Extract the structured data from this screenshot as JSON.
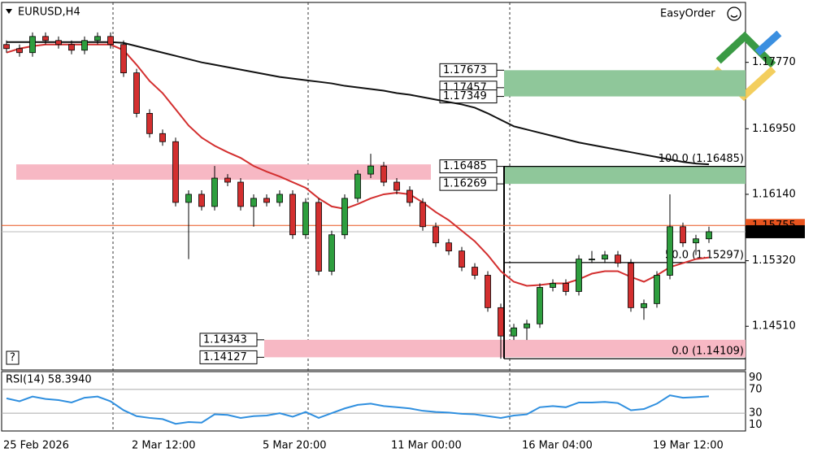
{
  "chart_data": {
    "type": "candlestick",
    "title": "EURUSD,H4",
    "easy_order": "EasyOrder",
    "help": "?",
    "bull_color": "#2e9e3e",
    "bear_color": "#d32f2f",
    "open": [
      1.1799,
      1.1794,
      1.1789,
      1.1809,
      1.1804,
      1.1799,
      1.1792,
      1.1804,
      1.1809,
      1.1799,
      1.1764,
      1.1714,
      1.1689,
      1.1679,
      1.1604,
      1.1614,
      1.1599,
      1.1634,
      1.1629,
      1.1599,
      1.1609,
      1.1604,
      1.1614,
      1.1564,
      1.1604,
      1.1519,
      1.1564,
      1.1609,
      1.1639,
      1.1649,
      1.1629,
      1.1619,
      1.1604,
      1.1574,
      1.1554,
      1.1544,
      1.1524,
      1.1514,
      1.1474,
      1.1439,
      1.1449,
      1.1454,
      1.1499,
      1.1504,
      1.1494,
      1.1534,
      1.1534,
      1.1539,
      1.1529,
      1.1474,
      1.1479,
      1.1514,
      1.1574,
      1.1554,
      1.1559
    ],
    "high": [
      1.1804,
      1.1799,
      1.1814,
      1.1814,
      1.1809,
      1.1804,
      1.1809,
      1.1814,
      1.1814,
      1.1804,
      1.1769,
      1.1719,
      1.1694,
      1.1684,
      1.1619,
      1.1619,
      1.1649,
      1.1639,
      1.1634,
      1.1614,
      1.1614,
      1.1619,
      1.1619,
      1.1609,
      1.1609,
      1.1569,
      1.1614,
      1.1644,
      1.1664,
      1.1654,
      1.1634,
      1.1624,
      1.1609,
      1.1579,
      1.1559,
      1.1549,
      1.1529,
      1.1519,
      1.1479,
      1.1454,
      1.1459,
      1.1504,
      1.1509,
      1.1509,
      1.1539,
      1.1544,
      1.1544,
      1.1544,
      1.1534,
      1.1484,
      1.1519,
      1.1614,
      1.1579,
      1.1564,
      1.1574
    ],
    "low": [
      1.1789,
      1.1784,
      1.1784,
      1.1799,
      1.1794,
      1.1787,
      1.1787,
      1.1799,
      1.1794,
      1.1759,
      1.1709,
      1.1684,
      1.1674,
      1.1599,
      1.1534,
      1.1594,
      1.1594,
      1.1624,
      1.1594,
      1.1574,
      1.1599,
      1.1599,
      1.1559,
      1.1559,
      1.1514,
      1.1514,
      1.1559,
      1.1604,
      1.1634,
      1.1624,
      1.1614,
      1.1599,
      1.1569,
      1.1549,
      1.1539,
      1.1519,
      1.1509,
      1.1469,
      1.14109,
      1.1434,
      1.1434,
      1.1449,
      1.1494,
      1.1489,
      1.1489,
      1.1529,
      1.1529,
      1.1524,
      1.1469,
      1.1459,
      1.1474,
      1.1509,
      1.1549,
      1.1539,
      1.1554
    ],
    "close": [
      1.1794,
      1.1789,
      1.1809,
      1.1804,
      1.1799,
      1.1792,
      1.1804,
      1.1809,
      1.1799,
      1.1764,
      1.1714,
      1.1689,
      1.1679,
      1.1604,
      1.1614,
      1.1599,
      1.1634,
      1.1629,
      1.1599,
      1.1609,
      1.1604,
      1.1614,
      1.1564,
      1.1604,
      1.1519,
      1.1564,
      1.1609,
      1.1639,
      1.1649,
      1.1629,
      1.1619,
      1.1604,
      1.1574,
      1.1554,
      1.1544,
      1.1524,
      1.1514,
      1.1474,
      1.1439,
      1.1449,
      1.1454,
      1.1499,
      1.1504,
      1.1494,
      1.1534,
      1.1534,
      1.1539,
      1.1529,
      1.1474,
      1.1479,
      1.1514,
      1.1574,
      1.1554,
      1.1559,
      1.15678
    ],
    "moving_averages": [
      {
        "color": "#d32f2f",
        "values": [
          1.1789,
          1.1794,
          1.1797,
          1.1799,
          1.1799,
          1.1799,
          1.1799,
          1.1799,
          1.1799,
          1.1792,
          1.1774,
          1.1754,
          1.1739,
          1.1719,
          1.1699,
          1.1684,
          1.1674,
          1.1666,
          1.1659,
          1.1649,
          1.1642,
          1.1636,
          1.1629,
          1.1622,
          1.1609,
          1.1599,
          1.1596,
          1.1602,
          1.1609,
          1.1614,
          1.1616,
          1.1614,
          1.1604,
          1.1592,
          1.1582,
          1.1569,
          1.1556,
          1.1539,
          1.1519,
          1.1506,
          1.1501,
          1.1502,
          1.1504,
          1.1504,
          1.1509,
          1.1516,
          1.1519,
          1.1519,
          1.1512,
          1.1506,
          1.1514,
          1.1524,
          1.1529,
          1.1534,
          1.1536
        ]
      },
      {
        "color": "#111111",
        "values": [
          1.1802,
          1.1802,
          1.1802,
          1.1802,
          1.1802,
          1.1802,
          1.1802,
          1.1802,
          1.1802,
          1.1801,
          1.1797,
          1.1793,
          1.1789,
          1.1785,
          1.1781,
          1.1777,
          1.1774,
          1.1771,
          1.1768,
          1.1765,
          1.1762,
          1.1759,
          1.1757,
          1.1755,
          1.1753,
          1.1751,
          1.1748,
          1.1746,
          1.1744,
          1.1742,
          1.1739,
          1.1737,
          1.1734,
          1.1731,
          1.1728,
          1.1725,
          1.1721,
          1.1714,
          1.1706,
          1.1698,
          1.1694,
          1.169,
          1.1686,
          1.1682,
          1.1678,
          1.1675,
          1.1672,
          1.1669,
          1.1666,
          1.1663,
          1.166,
          1.1657,
          1.1654,
          1.1652,
          1.1651
        ]
      }
    ],
    "ylim": [
      1.1397,
      1.1851
    ],
    "yticks": [
      {
        "value": 1.1777,
        "label": "1.17770"
      },
      {
        "value": 1.1695,
        "label": "1.16950"
      },
      {
        "value": 1.1614,
        "label": "1.16140"
      },
      {
        "value": 1.1532,
        "label": "1.15320"
      },
      {
        "value": 1.1451,
        "label": "1.14510"
      }
    ],
    "zones": [
      {
        "color": "#8fc79a",
        "levels": [
          1.17673,
          1.17457,
          1.17349
        ]
      },
      {
        "color": "#8fc79a",
        "levels": [
          1.16485,
          1.16269
        ]
      },
      {
        "color": "#f7b8c4",
        "levels": [
          1.14343,
          1.14127
        ]
      }
    ],
    "zones_unlabeled": [
      {
        "color": "#f7b8c4",
        "levels": [
          1.1651,
          1.1632
        ]
      }
    ],
    "fib_levels": [
      {
        "label": "100.0 (1.16485)",
        "price": 1.16485
      },
      {
        "label": "50.0 (1.15297)",
        "price": 1.15297
      },
      {
        "label": "0.0 (1.14109)",
        "price": 1.14109
      }
    ],
    "bid_line": {
      "value": 1.15755,
      "color": "#e8541e"
    },
    "x_labels": [
      "25 Feb 2026",
      "2 Mar 12:00",
      "5 Mar 20:00",
      "11 Mar 00:00",
      "16 Mar 04:00",
      "19 Mar 12:00"
    ],
    "rsi": {
      "title": "RSI(14) 58.3940",
      "color": "#2f8fdf",
      "values": [
        55,
        50,
        58,
        54,
        52,
        48,
        56,
        58,
        50,
        35,
        25,
        22,
        20,
        12,
        15,
        14,
        28,
        27,
        22,
        25,
        26,
        30,
        24,
        32,
        22,
        30,
        38,
        44,
        46,
        42,
        40,
        38,
        34,
        32,
        31,
        29,
        28,
        25,
        22,
        26,
        28,
        40,
        42,
        40,
        48,
        48,
        49,
        47,
        35,
        37,
        46,
        60,
        56,
        57,
        58.394
      ],
      "ylim": [
        0,
        100
      ],
      "yticks": [
        90,
        70,
        30,
        10
      ],
      "levels": [
        70,
        30
      ]
    }
  }
}
